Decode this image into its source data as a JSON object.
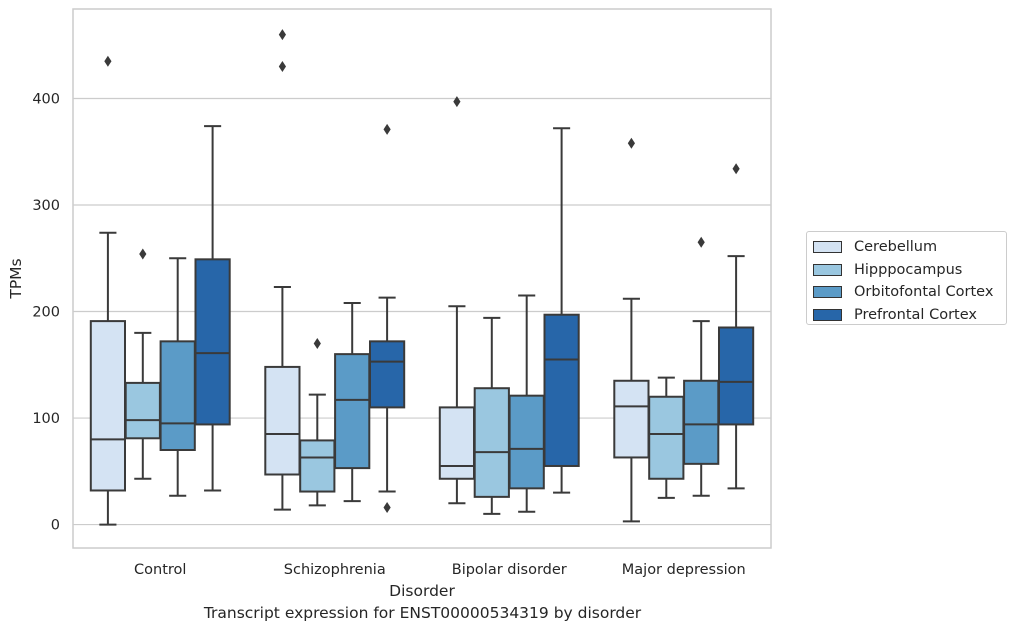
{
  "chart_data": {
    "type": "box",
    "title": "Transcript expression for ENST00000534319 by disorder",
    "xlabel": "Disorder",
    "ylabel": "TPMs",
    "ylim": [
      -22,
      484
    ],
    "yticks": [
      0,
      100,
      200,
      300,
      400
    ],
    "grid": "horizontal",
    "legend_position": "right",
    "categories": [
      "Control",
      "Schizophrenia",
      "Bipolar disorder",
      "Major depression"
    ],
    "series": [
      {
        "name": "Cerebellum",
        "color": "#d4e3f3",
        "boxes": [
          {
            "whislo": 0,
            "q1": 32,
            "med": 80,
            "q3": 191,
            "whishi": 274,
            "fliers": [
              435
            ]
          },
          {
            "whislo": 14,
            "q1": 47,
            "med": 85,
            "q3": 148,
            "whishi": 223,
            "fliers": [
              430,
              460
            ]
          },
          {
            "whislo": 20,
            "q1": 43,
            "med": 55,
            "q3": 110,
            "whishi": 205,
            "fliers": [
              397
            ]
          },
          {
            "whislo": 3,
            "q1": 63,
            "med": 111,
            "q3": 135,
            "whishi": 212,
            "fliers": [
              358
            ]
          }
        ]
      },
      {
        "name": "Hipppocampus",
        "color": "#9ac7e0",
        "boxes": [
          {
            "whislo": 43,
            "q1": 81,
            "med": 98,
            "q3": 133,
            "whishi": 180,
            "fliers": [
              254
            ]
          },
          {
            "whislo": 18,
            "q1": 31,
            "med": 63,
            "q3": 79,
            "whishi": 122,
            "fliers": [
              170
            ]
          },
          {
            "whislo": 10,
            "q1": 26,
            "med": 68,
            "q3": 128,
            "whishi": 194,
            "fliers": []
          },
          {
            "whislo": 25,
            "q1": 43,
            "med": 85,
            "q3": 120,
            "whishi": 138,
            "fliers": []
          }
        ]
      },
      {
        "name": "Orbitofontal Cortex",
        "color": "#5b9bc7",
        "boxes": [
          {
            "whislo": 27,
            "q1": 70,
            "med": 95,
            "q3": 172,
            "whishi": 250,
            "fliers": []
          },
          {
            "whislo": 22,
            "q1": 53,
            "med": 117,
            "q3": 160,
            "whishi": 208,
            "fliers": []
          },
          {
            "whislo": 12,
            "q1": 34,
            "med": 71,
            "q3": 121,
            "whishi": 215,
            "fliers": []
          },
          {
            "whislo": 27,
            "q1": 57,
            "med": 94,
            "q3": 135,
            "whishi": 191,
            "fliers": [
              265
            ]
          }
        ]
      },
      {
        "name": "Prefrontal Cortex",
        "color": "#2766a9",
        "boxes": [
          {
            "whislo": 32,
            "q1": 94,
            "med": 161,
            "q3": 249,
            "whishi": 374,
            "fliers": []
          },
          {
            "whislo": 31,
            "q1": 110,
            "med": 153,
            "q3": 172,
            "whishi": 213,
            "fliers": [
              371,
              16
            ]
          },
          {
            "whislo": 30,
            "q1": 55,
            "med": 155,
            "q3": 197,
            "whishi": 372,
            "fliers": []
          },
          {
            "whislo": 34,
            "q1": 94,
            "med": 134,
            "q3": 185,
            "whishi": 252,
            "fliers": [
              334
            ]
          }
        ]
      }
    ]
  }
}
